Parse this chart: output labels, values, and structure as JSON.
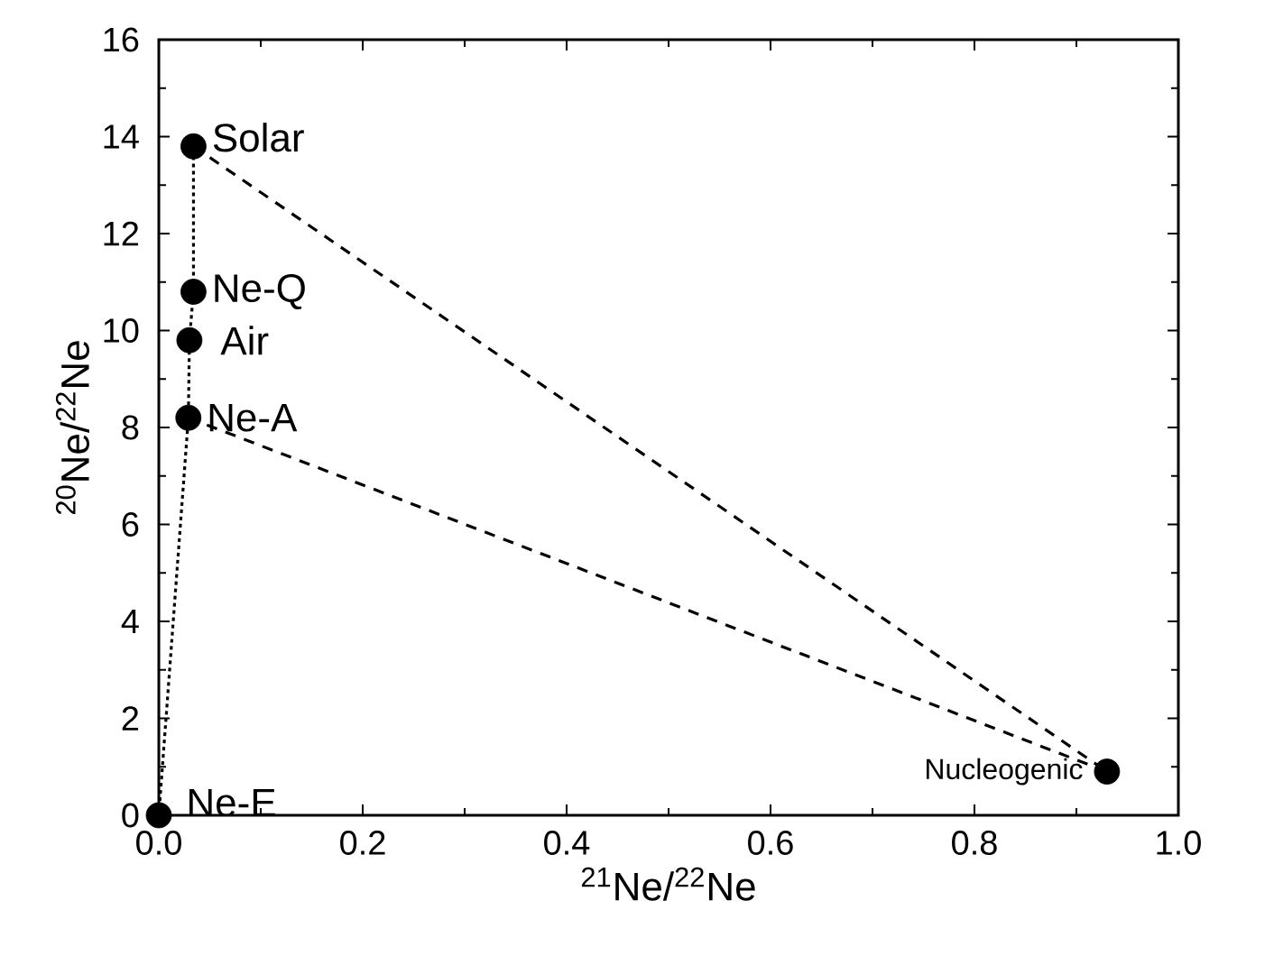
{
  "chart_data": {
    "type": "scatter",
    "xlabel": "$^{21}$Ne/$^{22}$Ne",
    "ylabel": "$^{20}$Ne/$^{22}$Ne",
    "xlim": [
      0,
      1
    ],
    "ylim": [
      0,
      16
    ],
    "xticks": [
      {
        "value": 0,
        "label": "0.0"
      },
      0.2,
      0.4,
      0.6,
      0.8,
      {
        "value": 1,
        "label": "1.0"
      }
    ],
    "yticks": [
      0,
      2,
      4,
      6,
      8,
      10,
      12,
      14,
      16
    ],
    "grid": false,
    "series": [
      {
        "type": "line",
        "line_style": "dashed",
        "marker": "none",
        "color": "#000000",
        "x": [
          0.034,
          0.93
        ],
        "values": [
          13.8,
          0.9
        ]
      },
      {
        "type": "line",
        "line_style": "dashed",
        "marker": "none",
        "color": "#000000",
        "x": [
          0.029,
          0.93
        ],
        "values": [
          8.2,
          0.9
        ]
      },
      {
        "type": "line",
        "line_style": "dotted",
        "marker": "none",
        "color": "#000000",
        "x": [
          0,
          0.029,
          0.03,
          0.034,
          0.034
        ],
        "values": [
          0,
          8.2,
          9.8,
          10.8,
          13.8
        ]
      },
      {
        "marker": "circle",
        "color": "#000000",
        "x": [
          0.034,
          0.034,
          0.03,
          0.029,
          0,
          0.93
        ],
        "values": [
          13.8,
          10.8,
          9.8,
          8.2,
          0,
          0.9
        ]
      }
    ],
    "annotations": [
      {
        "text": "Solar",
        "x": 0.034,
        "y": 13.8
      },
      {
        "text": "Ne-Q",
        "x": 0.034,
        "y": 10.8
      },
      {
        "text": "Air",
        "x": 0.03,
        "y": 9.8
      },
      {
        "text": "Ne-A",
        "x": 0.029,
        "y": 8.2
      },
      {
        "text": "Ne-E",
        "x": 0,
        "y": 0
      },
      {
        "text": "Nucleogenic",
        "x": 0.93,
        "y": 0.9
      }
    ]
  }
}
